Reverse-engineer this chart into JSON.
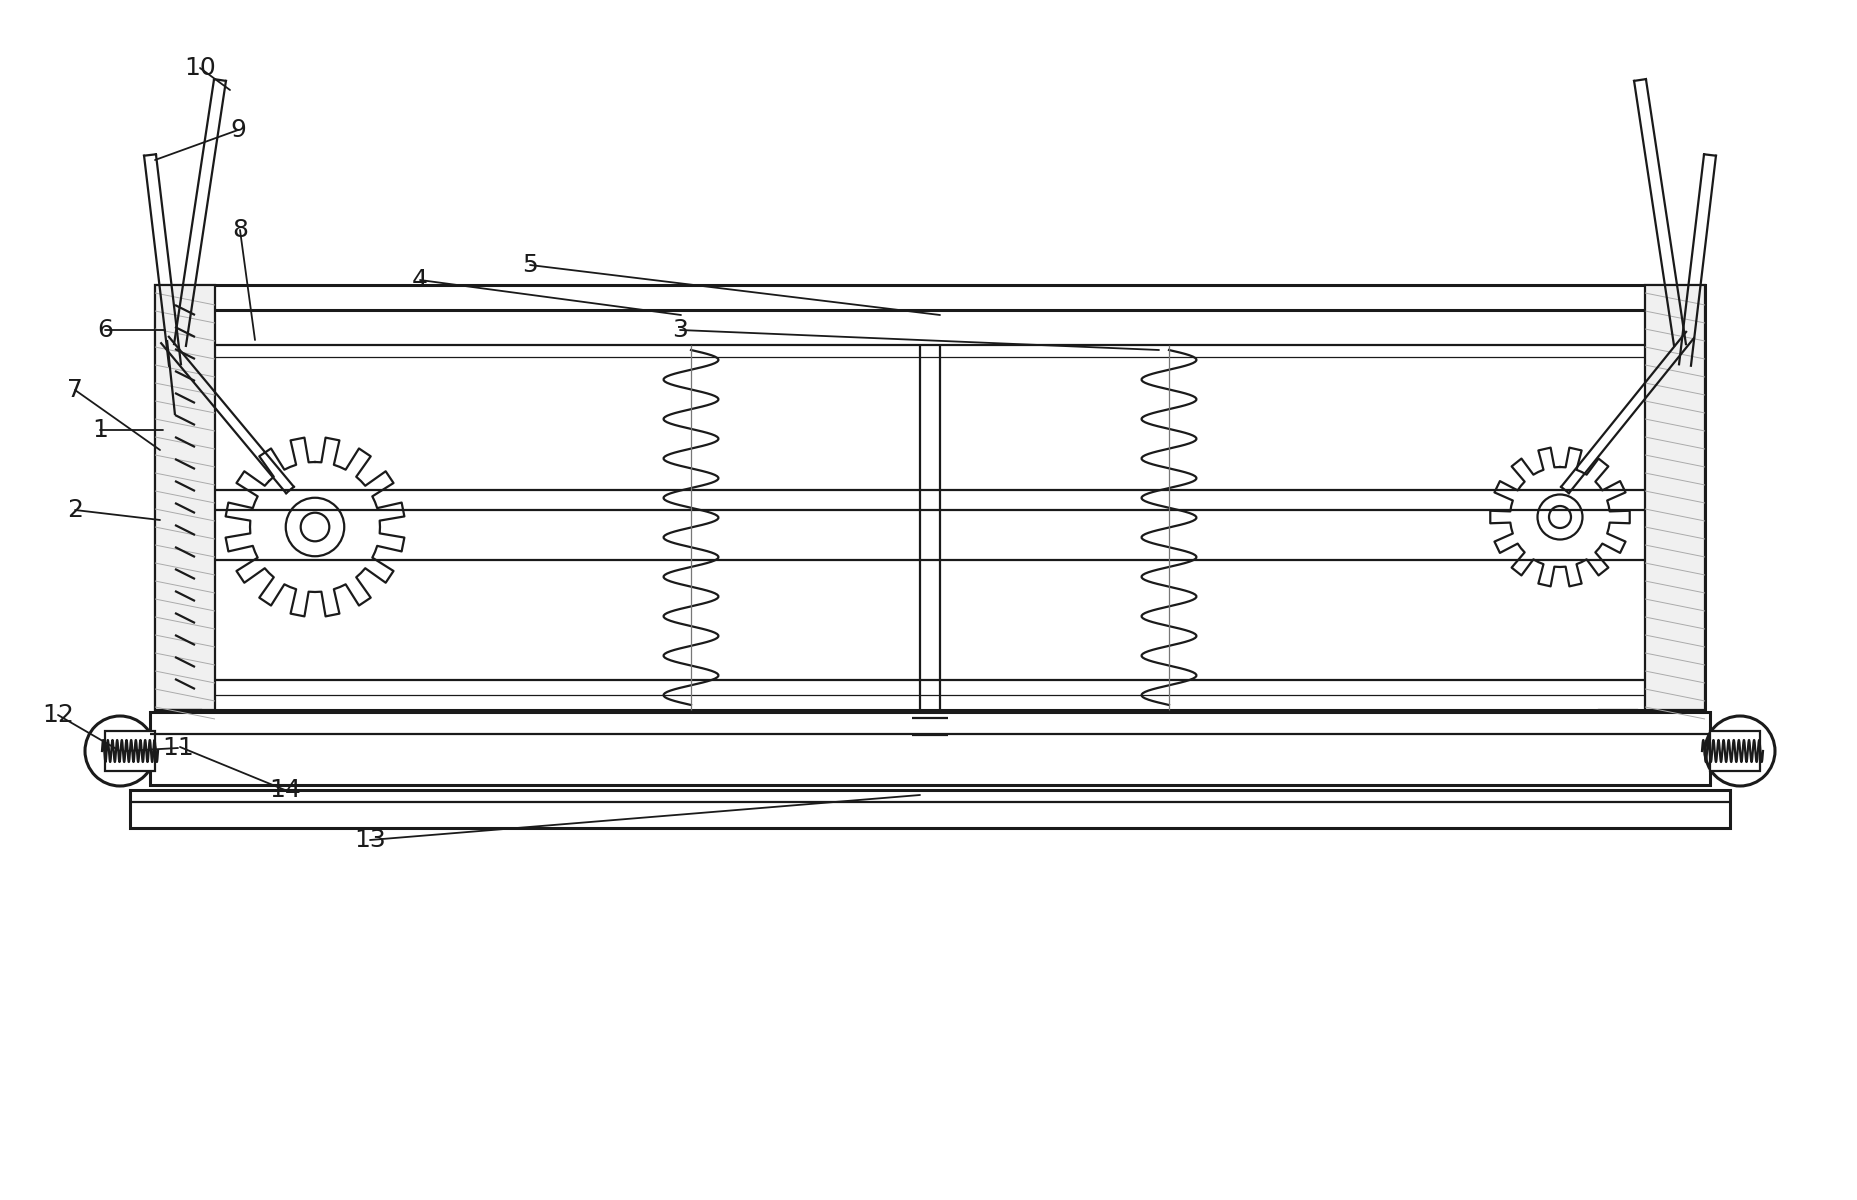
{
  "bg_color": "#ffffff",
  "line_color": "#1a1a1a",
  "lw": 1.6,
  "lw_thick": 2.2,
  "lw_thin": 0.9,
  "fig_width": 18.57,
  "fig_height": 12.0
}
